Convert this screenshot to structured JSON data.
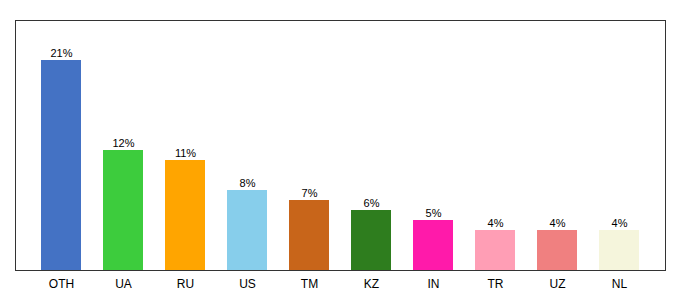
{
  "chart_data": {
    "type": "bar",
    "categories": [
      "OTH",
      "UA",
      "RU",
      "US",
      "TM",
      "KZ",
      "IN",
      "TR",
      "UZ",
      "NL"
    ],
    "values": [
      21,
      12,
      11,
      8,
      7,
      6,
      5,
      4,
      4,
      4
    ],
    "value_labels": [
      "21%",
      "12%",
      "11%",
      "8%",
      "7%",
      "6%",
      "5%",
      "4%",
      "4%",
      "4%"
    ],
    "colors": [
      "#4472c4",
      "#3dcc3d",
      "#ffa500",
      "#87ceeb",
      "#c8651a",
      "#2e7d1e",
      "#ff1aaa",
      "#ff9eb5",
      "#f08080",
      "#f5f5dc"
    ],
    "ylim": [
      0,
      25
    ],
    "data_labels": true,
    "tick_labels": "x",
    "grid": false
  }
}
